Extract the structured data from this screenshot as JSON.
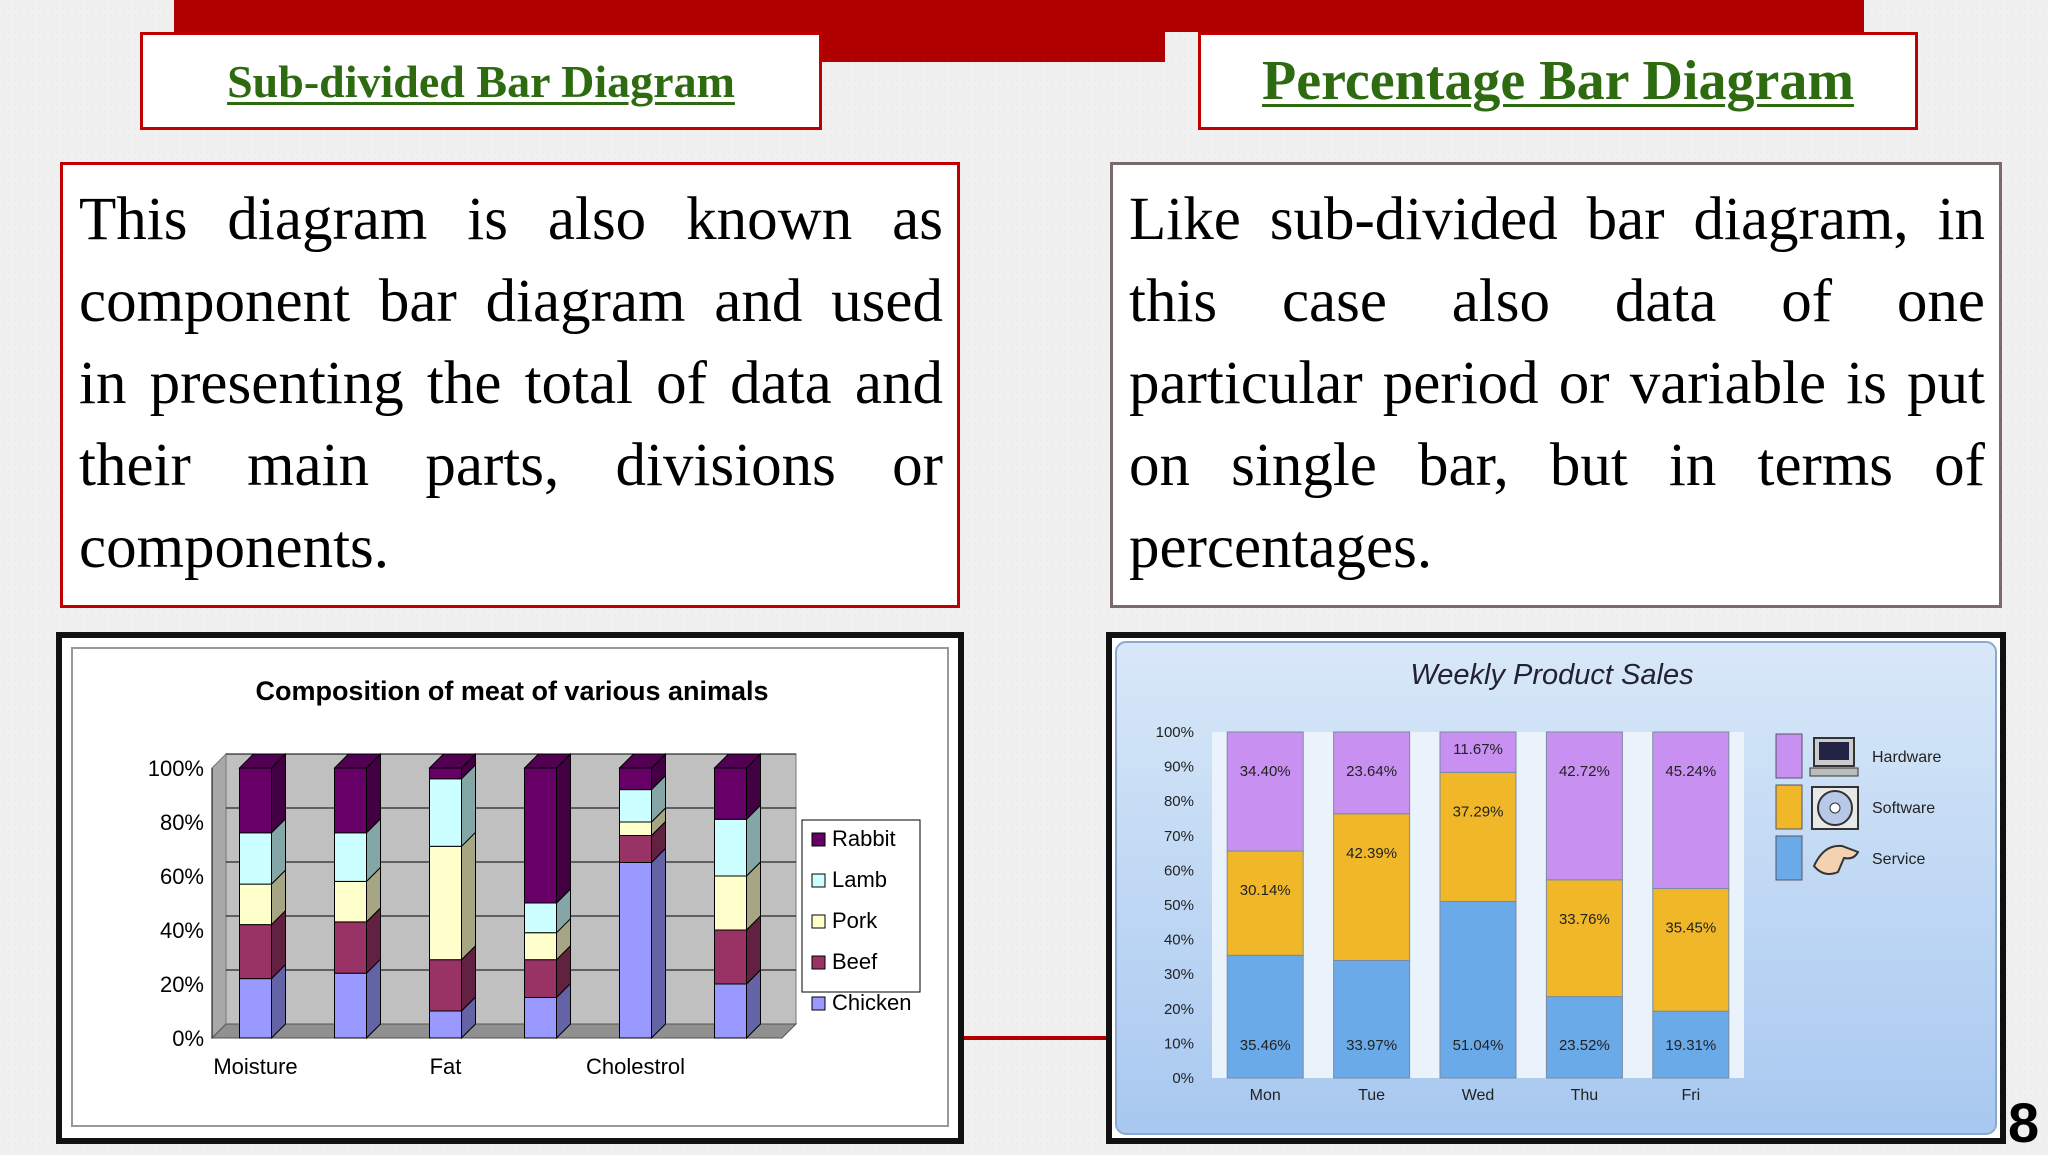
{
  "left": {
    "heading": "Sub-divided Bar Diagram",
    "text": "This diagram is also known as component bar diagram and used in presenting the total of data and their main parts, divisions or components."
  },
  "right": {
    "heading": "Percentage Bar Diagram",
    "text": "Like sub-divided bar diagram, in this case also data of one particular period or variable is put on single bar, but in terms of percentages."
  },
  "slide_number": "8",
  "chart_data": [
    {
      "type": "bar",
      "stacked": true,
      "style": "3d",
      "title": "Composition of meat of various animals",
      "categories": [
        "Moisture",
        "",
        "Fat",
        "",
        "Cholestrol",
        ""
      ],
      "ylim": [
        0,
        100
      ],
      "yticks": [
        "0%",
        "20%",
        "40%",
        "60%",
        "80%",
        "100%"
      ],
      "legend_position": "right",
      "series": [
        {
          "name": "Chicken",
          "color": "#9999ff",
          "values": [
            22,
            24,
            10,
            15,
            65,
            20
          ]
        },
        {
          "name": "Beef",
          "color": "#993366",
          "values": [
            20,
            19,
            19,
            14,
            10,
            20
          ]
        },
        {
          "name": "Pork",
          "color": "#ffffcc",
          "values": [
            15,
            15,
            42,
            10,
            5,
            20
          ]
        },
        {
          "name": "Lamb",
          "color": "#ccffff",
          "values": [
            19,
            18,
            25,
            11,
            12,
            21
          ]
        },
        {
          "name": "Rabbit",
          "color": "#660066",
          "values": [
            24,
            24,
            4,
            50,
            8,
            19
          ]
        }
      ]
    },
    {
      "type": "bar",
      "stacked": true,
      "title": "Weekly Product Sales",
      "categories": [
        "Mon",
        "Tue",
        "Wed",
        "Thu",
        "Fri"
      ],
      "ylim": [
        0,
        100
      ],
      "yticks": [
        "0%",
        "10%",
        "20%",
        "30%",
        "40%",
        "50%",
        "60%",
        "70%",
        "80%",
        "90%",
        "100%"
      ],
      "legend_position": "right",
      "series": [
        {
          "name": "Service",
          "color": "#6aaae8",
          "values": [
            35.46,
            33.97,
            51.04,
            23.52,
            19.31
          ],
          "labels": [
            "35.46%",
            "33.97%",
            "51.04%",
            "23.52%",
            "19.31%"
          ]
        },
        {
          "name": "Software",
          "color": "#f0b828",
          "values": [
            30.14,
            42.39,
            37.29,
            33.76,
            35.45
          ],
          "labels": [
            "30.14%",
            "42.39%",
            "37.29%",
            "33.76%",
            "35.45%"
          ]
        },
        {
          "name": "Hardware",
          "color": "#c890f0",
          "values": [
            34.4,
            23.64,
            11.67,
            42.72,
            45.24
          ],
          "labels": [
            "34.40%",
            "23.64%",
            "11.67%",
            "42.72%",
            "45.24%"
          ]
        }
      ]
    }
  ]
}
